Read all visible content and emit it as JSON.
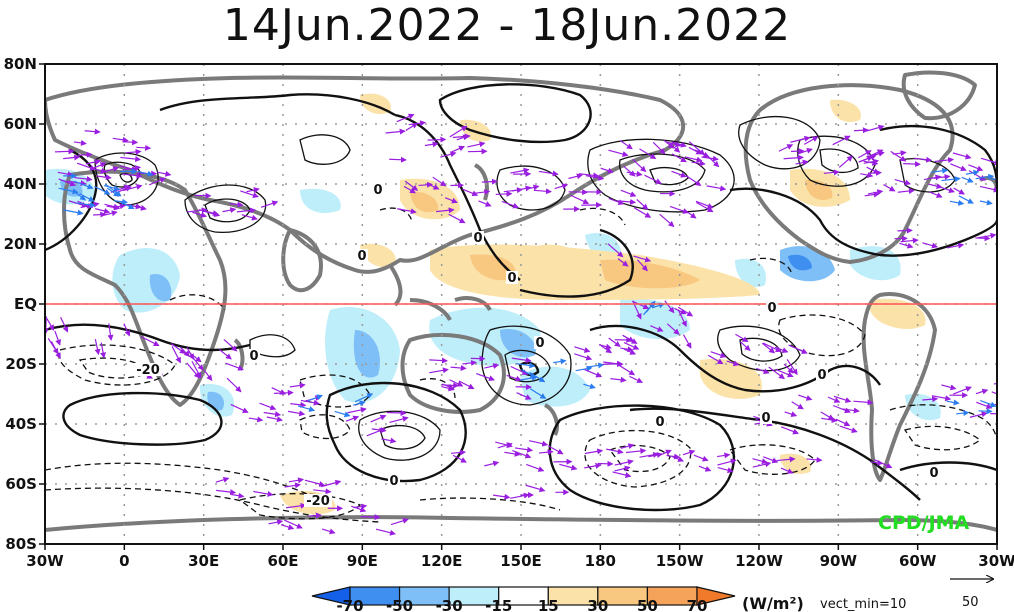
{
  "title": "14Jun.2022 - 18Jun.2022",
  "credit": "CPD/JMA",
  "equator_color": "#ff5555",
  "lon_labels": [
    "30W",
    "0",
    "30E",
    "60E",
    "90E",
    "120E",
    "150E",
    "180",
    "150W",
    "120W",
    "90W",
    "60W",
    "30W"
  ],
  "lat_labels": [
    "80N",
    "60N",
    "40N",
    "20N",
    "EQ",
    "20S",
    "40S",
    "60S",
    "80S"
  ],
  "contour_labels": [
    "0",
    "0",
    "0",
    "0",
    "0",
    "-20",
    "0",
    "0",
    "0",
    "0",
    "0",
    "-20",
    "0",
    "0"
  ],
  "colorbar": {
    "tick_labels": [
      "-70",
      "-50",
      "-30",
      "-15",
      "15",
      "30",
      "50",
      "70"
    ],
    "colors": [
      "#1560e8",
      "#3f8ff0",
      "#7dbff6",
      "#bfeefb",
      "#ffffff",
      "#fbe2a8",
      "#f8c780",
      "#f5a35a",
      "#f07a2a"
    ],
    "units": "(W/m²)",
    "vect_min": "vect_min=10",
    "ref_vector_label": "50"
  }
}
